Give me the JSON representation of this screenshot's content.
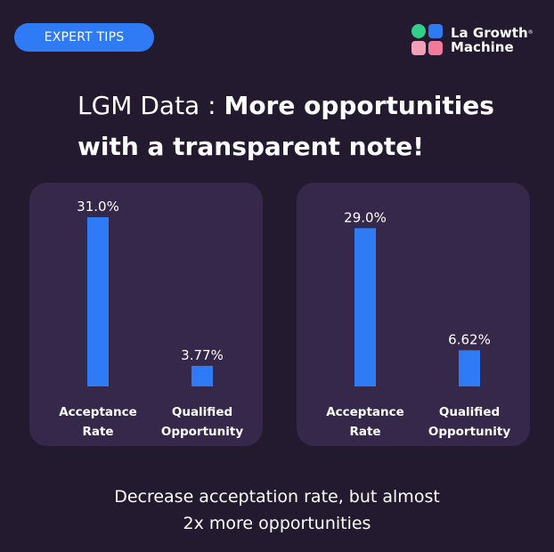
{
  "badge": {
    "label": "EXPERT TIPS"
  },
  "brand": {
    "line1": "La Growth",
    "line2": "Machine",
    "mark": "®",
    "logo_colors": [
      "#2fd18a",
      "#2f7bf6",
      "#f2a0b6",
      "#f07a9a"
    ]
  },
  "headline": {
    "prefix": "LGM Data : ",
    "bold_line1": "More opportunities",
    "bold_line2": "with a transparent note!"
  },
  "caption": {
    "line1": "Decrease acceptation rate, but almost",
    "line2": "2x more opportunities"
  },
  "colors": {
    "background": "#231a30",
    "panel": "#36284a",
    "bar": "#2f7bf6",
    "text": "#ffffff"
  },
  "chart_data": [
    {
      "type": "bar",
      "categories": [
        "Acceptance Rate",
        "Qualified Opportunity"
      ],
      "category_lines": [
        [
          "Acceptance",
          "Rate"
        ],
        [
          "Qualified",
          "Opportunity"
        ]
      ],
      "values": [
        31.0,
        3.77
      ],
      "labels": [
        "31.0%",
        "3.77%"
      ],
      "ylim": [
        0,
        31
      ]
    },
    {
      "type": "bar",
      "categories": [
        "Acceptance Rate",
        "Qualified Opportunity"
      ],
      "category_lines": [
        [
          "Acceptance",
          "Rate"
        ],
        [
          "Qualified",
          "Opportunity"
        ]
      ],
      "values": [
        29.0,
        6.62
      ],
      "labels": [
        "29.0%",
        "6.62%"
      ],
      "ylim": [
        0,
        31
      ]
    }
  ]
}
